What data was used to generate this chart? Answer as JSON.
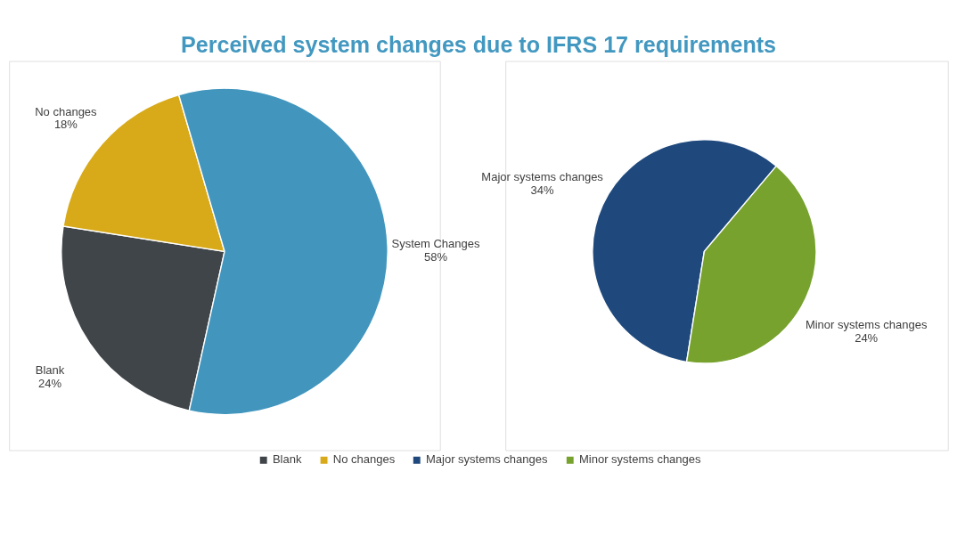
{
  "chart_data": [
    {
      "type": "pie",
      "title": "Perceived system changes due to IFRS 17 requirements",
      "categories": [
        "Blank",
        "No changes",
        "System Changes"
      ],
      "values": [
        24,
        18,
        58
      ],
      "value_labels": [
        "24%",
        "18%",
        "58%"
      ],
      "colors": [
        "#404549",
        "#d8aa19",
        "#4296bd"
      ],
      "legend": "bottom"
    },
    {
      "type": "pie",
      "categories": [
        "Major systems changes",
        "Minor systems changes"
      ],
      "values": [
        34,
        24
      ],
      "value_labels": [
        "34%",
        "24%"
      ],
      "colors": [
        "#1f497d",
        "#77a22d"
      ],
      "legend": "bottom"
    }
  ]
}
